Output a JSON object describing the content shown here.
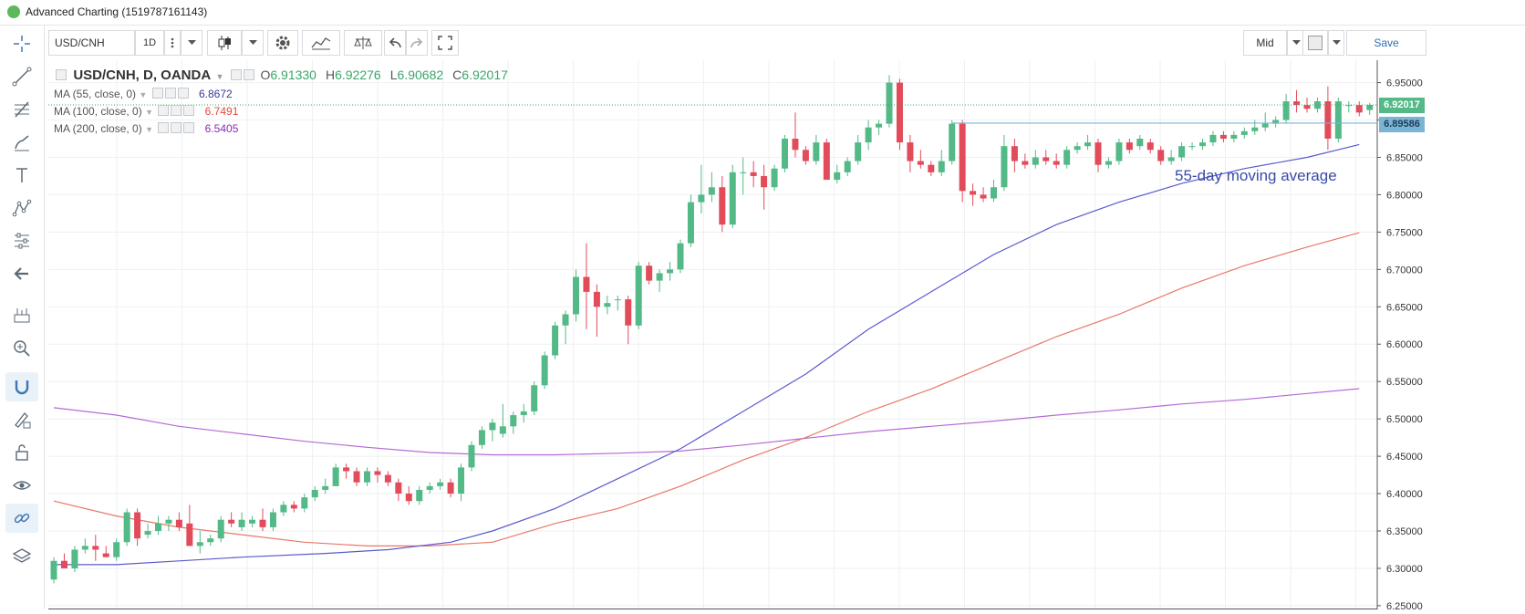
{
  "window": {
    "title": "Advanced Charting (1519787161143)"
  },
  "toolbar": {
    "symbol": "USD/CNH",
    "interval": "1D",
    "price_mode": "Mid",
    "save_label": "Save"
  },
  "left_toolbar": {
    "tools": [
      "crosshair-icon",
      "trend-line-icon",
      "fib-icon",
      "brush-icon",
      "text-icon",
      "pattern-icon",
      "measure-icon",
      "back-arrow-icon",
      "ruler-icon",
      "zoom-in-icon",
      "magnet-icon",
      "lock-draw-icon",
      "lock-icon",
      "eye-icon",
      "link-icon",
      "layers-icon"
    ]
  },
  "legend": {
    "main": {
      "label": "USD/CNH, D, OANDA",
      "o": "6.91330",
      "h": "6.92276",
      "l": "6.90682",
      "c": "6.92017",
      "o_label": "O",
      "h_label": "H",
      "l_label": "L",
      "c_label": "C"
    },
    "ma": [
      {
        "label": "MA (55, close, 0)",
        "value": "6.8672",
        "color": "#3a3a9a"
      },
      {
        "label": "MA (100, close, 0)",
        "value": "6.7491",
        "color": "#e04a3a"
      },
      {
        "label": "MA (200, close, 0)",
        "value": "6.5405",
        "color": "#8a2ab8"
      }
    ]
  },
  "annotation": "55-day moving average",
  "price_tags": {
    "last": "6.92017",
    "line": "6.89586"
  },
  "colors": {
    "up": "#53b987",
    "down": "#e24b5a",
    "ma55": "#5a5acc",
    "ma100": "#e8776a",
    "ma200": "#b46bd6",
    "last_line": "#3aa66a",
    "hline": "#7ab4d4"
  },
  "chart_data": {
    "type": "candlestick",
    "ylim": [
      6.245,
      6.98
    ],
    "y_ticks": [
      "6.95000",
      "6.90000",
      "6.85000",
      "6.80000",
      "6.75000",
      "6.70000",
      "6.65000",
      "6.60000",
      "6.55000",
      "6.50000",
      "6.45000",
      "6.40000",
      "6.35000",
      "6.30000",
      "6.25000"
    ],
    "last_price": 6.92017,
    "horizontal_line": 6.89586,
    "ohlc": [
      [
        6.285,
        6.315,
        6.28,
        6.31
      ],
      [
        6.31,
        6.32,
        6.3,
        6.3
      ],
      [
        6.3,
        6.33,
        6.295,
        6.325
      ],
      [
        6.325,
        6.34,
        6.32,
        6.33
      ],
      [
        6.33,
        6.345,
        6.31,
        6.325
      ],
      [
        6.32,
        6.33,
        6.315,
        6.315
      ],
      [
        6.315,
        6.34,
        6.31,
        6.335
      ],
      [
        6.335,
        6.38,
        6.33,
        6.375
      ],
      [
        6.375,
        6.38,
        6.33,
        6.34
      ],
      [
        6.345,
        6.36,
        6.34,
        6.35
      ],
      [
        6.35,
        6.37,
        6.345,
        6.36
      ],
      [
        6.36,
        6.37,
        6.35,
        6.365
      ],
      [
        6.365,
        6.375,
        6.35,
        6.355
      ],
      [
        6.36,
        6.385,
        6.33,
        6.33
      ],
      [
        6.33,
        6.35,
        6.32,
        6.335
      ],
      [
        6.335,
        6.345,
        6.33,
        6.34
      ],
      [
        6.34,
        6.37,
        6.335,
        6.365
      ],
      [
        6.365,
        6.375,
        6.355,
        6.36
      ],
      [
        6.355,
        6.375,
        6.35,
        6.365
      ],
      [
        6.36,
        6.37,
        6.355,
        6.365
      ],
      [
        6.365,
        6.38,
        6.35,
        6.355
      ],
      [
        6.355,
        6.38,
        6.35,
        6.375
      ],
      [
        6.375,
        6.39,
        6.37,
        6.385
      ],
      [
        6.385,
        6.39,
        6.375,
        6.38
      ],
      [
        6.38,
        6.4,
        6.375,
        6.395
      ],
      [
        6.395,
        6.41,
        6.39,
        6.405
      ],
      [
        6.405,
        6.42,
        6.4,
        6.41
      ],
      [
        6.41,
        6.44,
        6.41,
        6.435
      ],
      [
        6.435,
        6.44,
        6.42,
        6.43
      ],
      [
        6.43,
        6.435,
        6.41,
        6.415
      ],
      [
        6.415,
        6.435,
        6.41,
        6.43
      ],
      [
        6.43,
        6.435,
        6.415,
        6.425
      ],
      [
        6.425,
        6.43,
        6.41,
        6.415
      ],
      [
        6.415,
        6.42,
        6.39,
        6.4
      ],
      [
        6.4,
        6.41,
        6.385,
        6.39
      ],
      [
        6.39,
        6.41,
        6.385,
        6.405
      ],
      [
        6.405,
        6.415,
        6.4,
        6.41
      ],
      [
        6.41,
        6.42,
        6.405,
        6.415
      ],
      [
        6.415,
        6.42,
        6.395,
        6.4
      ],
      [
        6.4,
        6.44,
        6.39,
        6.435
      ],
      [
        6.435,
        6.47,
        6.43,
        6.465
      ],
      [
        6.465,
        6.49,
        6.46,
        6.485
      ],
      [
        6.485,
        6.5,
        6.47,
        6.495
      ],
      [
        6.48,
        6.52,
        6.475,
        6.49
      ],
      [
        6.49,
        6.51,
        6.48,
        6.505
      ],
      [
        6.505,
        6.52,
        6.495,
        6.51
      ],
      [
        6.51,
        6.55,
        6.505,
        6.545
      ],
      [
        6.545,
        6.59,
        6.54,
        6.585
      ],
      [
        6.585,
        6.63,
        6.58,
        6.625
      ],
      [
        6.625,
        6.645,
        6.6,
        6.64
      ],
      [
        6.64,
        6.7,
        6.63,
        6.69
      ],
      [
        6.69,
        6.735,
        6.62,
        6.67
      ],
      [
        6.67,
        6.68,
        6.61,
        6.65
      ],
      [
        6.65,
        6.665,
        6.64,
        6.655
      ],
      [
        6.66,
        6.665,
        6.645,
        6.66
      ],
      [
        6.66,
        6.665,
        6.6,
        6.625
      ],
      [
        6.625,
        6.71,
        6.62,
        6.705
      ],
      [
        6.705,
        6.71,
        6.68,
        6.685
      ],
      [
        6.685,
        6.7,
        6.67,
        6.695
      ],
      [
        6.695,
        6.71,
        6.685,
        6.7
      ],
      [
        6.7,
        6.74,
        6.695,
        6.735
      ],
      [
        6.735,
        6.8,
        6.73,
        6.79
      ],
      [
        6.79,
        6.84,
        6.775,
        6.8
      ],
      [
        6.8,
        6.83,
        6.79,
        6.81
      ],
      [
        6.81,
        6.825,
        6.75,
        6.76
      ],
      [
        6.76,
        6.84,
        6.755,
        6.83
      ],
      [
        6.83,
        6.85,
        6.8,
        6.83
      ],
      [
        6.83,
        6.845,
        6.81,
        6.825
      ],
      [
        6.825,
        6.84,
        6.78,
        6.81
      ],
      [
        6.81,
        6.84,
        6.805,
        6.835
      ],
      [
        6.835,
        6.88,
        6.83,
        6.875
      ],
      [
        6.875,
        6.91,
        6.85,
        6.86
      ],
      [
        6.86,
        6.865,
        6.84,
        6.845
      ],
      [
        6.845,
        6.88,
        6.84,
        6.87
      ],
      [
        6.87,
        6.875,
        6.82,
        6.82
      ],
      [
        6.82,
        6.84,
        6.815,
        6.83
      ],
      [
        6.83,
        6.85,
        6.825,
        6.845
      ],
      [
        6.845,
        6.88,
        6.84,
        6.87
      ],
      [
        6.87,
        6.9,
        6.86,
        6.89
      ],
      [
        6.89,
        6.9,
        6.88,
        6.895
      ],
      [
        6.895,
        6.96,
        6.89,
        6.95
      ],
      [
        6.95,
        6.955,
        6.86,
        6.87
      ],
      [
        6.87,
        6.88,
        6.83,
        6.845
      ],
      [
        6.845,
        6.86,
        6.835,
        6.84
      ],
      [
        6.84,
        6.845,
        6.825,
        6.83
      ],
      [
        6.83,
        6.86,
        6.825,
        6.845
      ],
      [
        6.845,
        6.9,
        6.84,
        6.895
      ],
      [
        6.895,
        6.9,
        6.79,
        6.805
      ],
      [
        6.805,
        6.815,
        6.785,
        6.8
      ],
      [
        6.8,
        6.81,
        6.79,
        6.795
      ],
      [
        6.795,
        6.82,
        6.79,
        6.81
      ],
      [
        6.81,
        6.88,
        6.805,
        6.865
      ],
      [
        6.865,
        6.875,
        6.83,
        6.845
      ],
      [
        6.845,
        6.855,
        6.835,
        6.84
      ],
      [
        6.84,
        6.86,
        6.835,
        6.85
      ],
      [
        6.85,
        6.86,
        6.84,
        6.845
      ],
      [
        6.845,
        6.855,
        6.835,
        6.84
      ],
      [
        6.84,
        6.865,
        6.835,
        6.86
      ],
      [
        6.86,
        6.87,
        6.855,
        6.865
      ],
      [
        6.865,
        6.88,
        6.86,
        6.87
      ],
      [
        6.87,
        6.875,
        6.83,
        6.84
      ],
      [
        6.84,
        6.85,
        6.835,
        6.845
      ],
      [
        6.845,
        6.875,
        6.84,
        6.87
      ],
      [
        6.87,
        6.875,
        6.855,
        6.86
      ],
      [
        6.865,
        6.88,
        6.86,
        6.875
      ],
      [
        6.87,
        6.875,
        6.855,
        6.86
      ],
      [
        6.86,
        6.865,
        6.84,
        6.845
      ],
      [
        6.845,
        6.86,
        6.84,
        6.85
      ],
      [
        6.85,
        6.87,
        6.845,
        6.865
      ],
      [
        6.865,
        6.87,
        6.86,
        6.865
      ],
      [
        6.865,
        6.875,
        6.86,
        6.87
      ],
      [
        6.87,
        6.885,
        6.865,
        6.88
      ],
      [
        6.88,
        6.885,
        6.87,
        6.875
      ],
      [
        6.875,
        6.885,
        6.87,
        6.88
      ],
      [
        6.88,
        6.89,
        6.875,
        6.885
      ],
      [
        6.885,
        6.9,
        6.88,
        6.89
      ],
      [
        6.89,
        6.91,
        6.885,
        6.895
      ],
      [
        6.895,
        6.905,
        6.89,
        6.9
      ],
      [
        6.9,
        6.935,
        6.895,
        6.925
      ],
      [
        6.925,
        6.94,
        6.91,
        6.92
      ],
      [
        6.92,
        6.93,
        6.91,
        6.915
      ],
      [
        6.915,
        6.93,
        6.91,
        6.925
      ],
      [
        6.925,
        6.945,
        6.86,
        6.875
      ],
      [
        6.875,
        6.93,
        6.87,
        6.925
      ],
      [
        6.92,
        6.925,
        6.91,
        6.92
      ],
      [
        6.92,
        6.925,
        6.905,
        6.91
      ],
      [
        6.9133,
        6.92276,
        6.90682,
        6.92017
      ]
    ],
    "ma55": [
      [
        0,
        6.305
      ],
      [
        6,
        6.305
      ],
      [
        12,
        6.31
      ],
      [
        18,
        6.315
      ],
      [
        26,
        6.32
      ],
      [
        32,
        6.325
      ],
      [
        38,
        6.335
      ],
      [
        42,
        6.35
      ],
      [
        48,
        6.38
      ],
      [
        54,
        6.42
      ],
      [
        60,
        6.46
      ],
      [
        66,
        6.51
      ],
      [
        72,
        6.56
      ],
      [
        78,
        6.62
      ],
      [
        84,
        6.67
      ],
      [
        90,
        6.72
      ],
      [
        96,
        6.76
      ],
      [
        102,
        6.79
      ],
      [
        108,
        6.815
      ],
      [
        114,
        6.835
      ],
      [
        120,
        6.85
      ],
      [
        125,
        6.8672
      ]
    ],
    "ma100": [
      [
        0,
        6.39
      ],
      [
        6,
        6.37
      ],
      [
        12,
        6.355
      ],
      [
        18,
        6.345
      ],
      [
        24,
        6.335
      ],
      [
        30,
        6.33
      ],
      [
        36,
        6.33
      ],
      [
        42,
        6.335
      ],
      [
        48,
        6.36
      ],
      [
        54,
        6.38
      ],
      [
        60,
        6.41
      ],
      [
        66,
        6.445
      ],
      [
        72,
        6.475
      ],
      [
        78,
        6.51
      ],
      [
        84,
        6.54
      ],
      [
        90,
        6.575
      ],
      [
        96,
        6.61
      ],
      [
        102,
        6.64
      ],
      [
        108,
        6.675
      ],
      [
        114,
        6.705
      ],
      [
        120,
        6.73
      ],
      [
        125,
        6.7491
      ]
    ],
    "ma200": [
      [
        0,
        6.515
      ],
      [
        6,
        6.505
      ],
      [
        12,
        6.49
      ],
      [
        18,
        6.48
      ],
      [
        24,
        6.47
      ],
      [
        30,
        6.462
      ],
      [
        36,
        6.455
      ],
      [
        42,
        6.452
      ],
      [
        48,
        6.452
      ],
      [
        54,
        6.454
      ],
      [
        60,
        6.457
      ],
      [
        66,
        6.465
      ],
      [
        72,
        6.474
      ],
      [
        78,
        6.483
      ],
      [
        84,
        6.49
      ],
      [
        90,
        6.497
      ],
      [
        96,
        6.505
      ],
      [
        102,
        6.512
      ],
      [
        108,
        6.52
      ],
      [
        114,
        6.526
      ],
      [
        120,
        6.534
      ],
      [
        125,
        6.5405
      ]
    ]
  }
}
